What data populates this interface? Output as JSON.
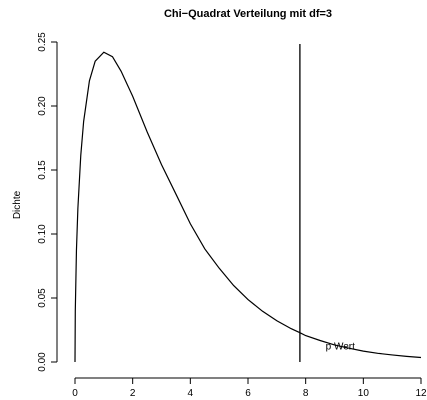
{
  "chart_data": {
    "type": "line",
    "title": "Chi−Quadrat Verteilung mit df=3",
    "xlabel": "",
    "ylabel": "Dichte",
    "xlim": [
      0,
      12
    ],
    "ylim": [
      0,
      0.25
    ],
    "x_ticks": [
      "0",
      "2",
      "4",
      "6",
      "8",
      "10",
      "12"
    ],
    "y_ticks": [
      "0.00",
      "0.05",
      "0.10",
      "0.15",
      "0.20",
      "0.25"
    ],
    "grid": false,
    "series": [
      {
        "x": [
          0.01,
          0.05,
          0.1,
          0.2,
          0.3,
          0.5,
          0.7,
          1.0,
          1.3,
          1.6,
          2.0,
          2.5,
          3.0,
          3.5,
          4.0,
          4.5,
          5.0,
          5.5,
          6.0,
          6.5,
          7.0,
          7.5,
          7.8,
          8.0,
          8.5,
          9.0,
          9.5,
          10.0,
          10.5,
          11.0,
          11.5,
          12.0
        ],
        "y": [
          0.0397,
          0.0871,
          0.12,
          0.1614,
          0.188,
          0.2197,
          0.235,
          0.242,
          0.2385,
          0.2271,
          0.2076,
          0.1799,
          0.1542,
          0.1312,
          0.108,
          0.0884,
          0.0733,
          0.0598,
          0.0488,
          0.0397,
          0.0322,
          0.026,
          0.0229,
          0.0206,
          0.0168,
          0.0133,
          0.0108,
          0.0085,
          0.0068,
          0.0055,
          0.0044,
          0.0035
        ]
      }
    ],
    "vline": {
      "x": 7.8
    },
    "annotation": {
      "text": "p Wert",
      "x": 9.2,
      "y": 0.012
    }
  }
}
